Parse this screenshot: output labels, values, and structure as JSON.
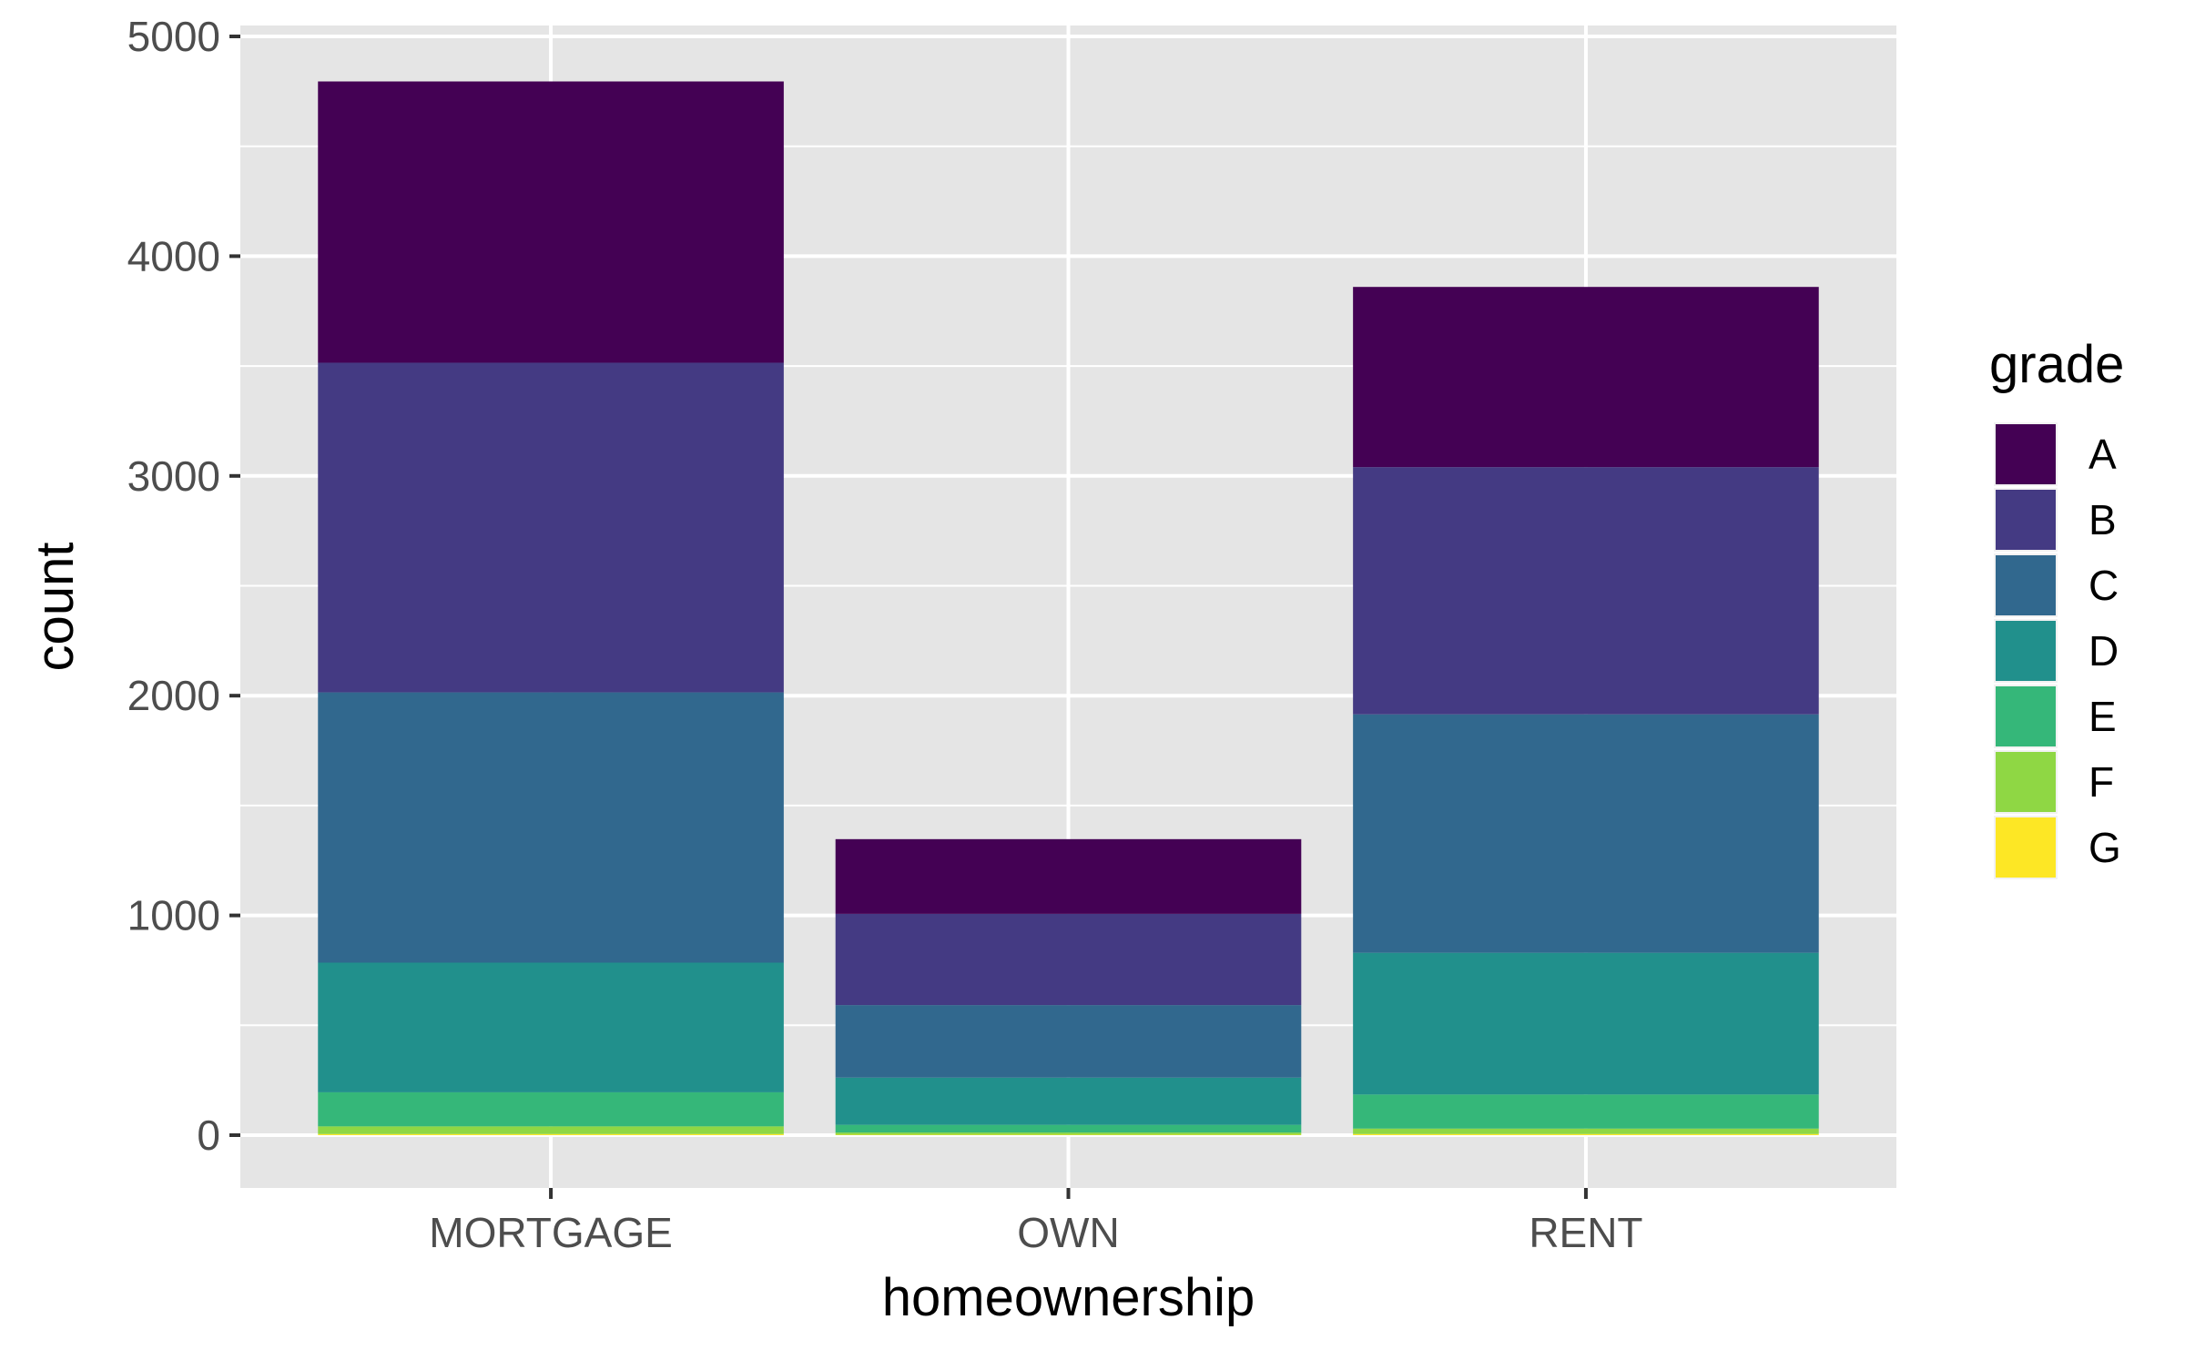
{
  "chart_data": {
    "type": "bar",
    "stacked": true,
    "title": "",
    "xlabel": "homeownership",
    "ylabel": "count",
    "categories": [
      "MORTGAGE",
      "OWN",
      "RENT"
    ],
    "ylim": [
      0,
      5000
    ],
    "yticks": [
      0,
      1000,
      2000,
      3000,
      4000,
      5000
    ],
    "grid": true,
    "legend": {
      "title": "grade",
      "position": "right"
    },
    "series": [
      {
        "name": "A",
        "color": "#440154",
        "values": [
          1280,
          340,
          820
        ]
      },
      {
        "name": "B",
        "color": "#443A83",
        "values": [
          1500,
          415,
          1125
        ]
      },
      {
        "name": "C",
        "color": "#31688E",
        "values": [
          1230,
          330,
          1085
        ]
      },
      {
        "name": "D",
        "color": "#21908C",
        "values": [
          590,
          215,
          645
        ]
      },
      {
        "name": "E",
        "color": "#35B779",
        "values": [
          155,
          35,
          155
        ]
      },
      {
        "name": "F",
        "color": "#8FD744",
        "values": [
          35,
          10,
          25
        ]
      },
      {
        "name": "G",
        "color": "#FDE725",
        "values": [
          5,
          2,
          5
        ]
      }
    ],
    "panel_color": "#E5E5E5",
    "grid_color": "#FFFFFF"
  }
}
